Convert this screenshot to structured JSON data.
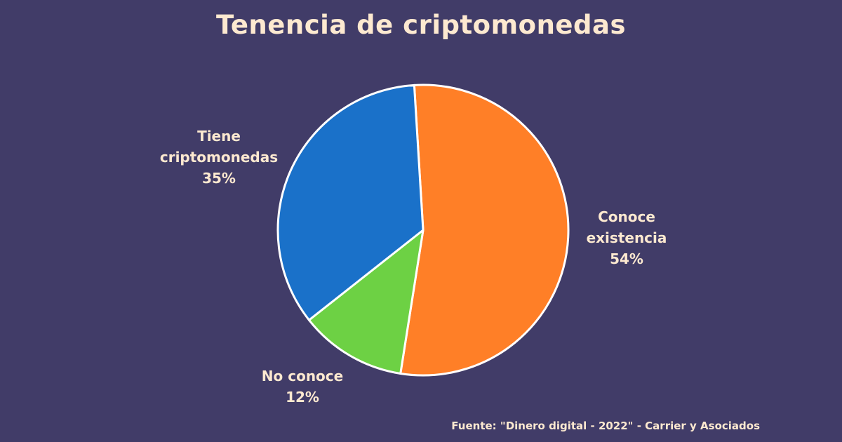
{
  "title": "Tenencia de criptomonedas",
  "source": "Fuente: \"Dinero digital - 2022\" - Carrier y Asociados",
  "colors": {
    "background": "#413c68",
    "text": "#fde9d0",
    "slice_border": "#ffffff"
  },
  "chart_data": {
    "type": "pie",
    "title": "Tenencia de criptomonedas",
    "slices": [
      {
        "label": "Conoce existencia",
        "label_lines": [
          "Conoce",
          "existencia"
        ],
        "value": 54,
        "value_label": "54%",
        "color": "#ff7f27"
      },
      {
        "label": "No conoce",
        "label_lines": [
          "No conoce"
        ],
        "value": 12,
        "value_label": "12%",
        "color": "#6dd144"
      },
      {
        "label": "Tiene criptomonedas",
        "label_lines": [
          "Tiene",
          "criptomonedas"
        ],
        "value": 35,
        "value_label": "35%",
        "color": "#1a71c9"
      }
    ]
  }
}
